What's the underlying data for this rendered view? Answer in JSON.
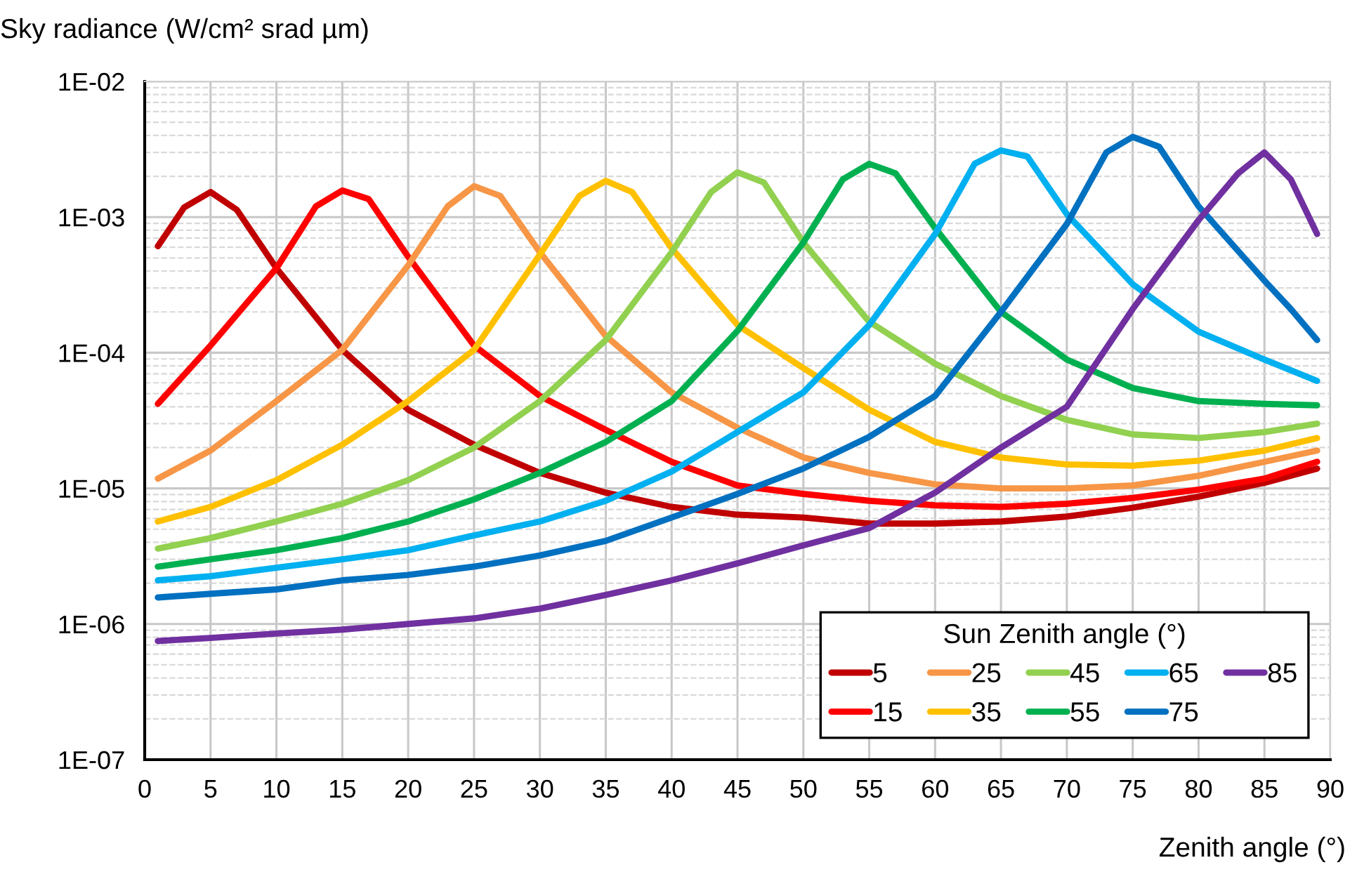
{
  "chart_data": {
    "type": "line",
    "ylabel": "Sky radiance (W/cm² srad µm)",
    "xlabel": "Zenith angle (°)",
    "legend_title": "Sun Zenith angle (°)",
    "legend": "bottom right",
    "grid": true,
    "log": "y",
    "marker": "none",
    "line_style": "solid",
    "xlim": [
      0,
      90
    ],
    "xticks": [
      0,
      5,
      10,
      15,
      20,
      25,
      30,
      35,
      40,
      45,
      50,
      55,
      60,
      65,
      70,
      75,
      80,
      85,
      90
    ],
    "ylim": [
      1e-07,
      0.01
    ],
    "yticks": [
      {
        "value": 1e-07,
        "label": "1E-07"
      },
      {
        "value": 1e-06,
        "label": "1E-06"
      },
      {
        "value": 1e-05,
        "label": "1E-05"
      },
      {
        "value": 0.0001,
        "label": "1E-04"
      },
      {
        "value": 0.001,
        "label": "1E-03"
      },
      {
        "value": 0.01,
        "label": "1E-02"
      }
    ],
    "series": [
      {
        "name": "5",
        "color": "#c00000",
        "x": [
          1,
          3,
          5,
          7,
          10,
          15,
          20,
          25,
          30,
          35,
          40,
          45,
          50,
          55,
          60,
          65,
          70,
          75,
          80,
          85,
          89
        ],
        "values": [
          0.00061,
          0.00118,
          0.00153,
          0.00113,
          0.00042,
          0.000105,
          3.8e-05,
          2.1e-05,
          1.3e-05,
          9.3e-06,
          7.3e-06,
          6.4e-06,
          6.1e-06,
          5.5e-06,
          5.5e-06,
          5.7e-06,
          6.2e-06,
          7.2e-06,
          8.7e-06,
          1.1e-05,
          1.4e-05
        ]
      },
      {
        "name": "15",
        "color": "#ff0000",
        "x": [
          1,
          5,
          10,
          13,
          15,
          17,
          20,
          25,
          30,
          35,
          40,
          45,
          50,
          55,
          60,
          65,
          70,
          75,
          80,
          85,
          89
        ],
        "values": [
          4.2e-05,
          0.000113,
          0.00042,
          0.0012,
          0.00157,
          0.00136,
          0.00051,
          0.000113,
          4.8e-05,
          2.7e-05,
          1.57e-05,
          1.05e-05,
          9.1e-06,
          8.1e-06,
          7.5e-06,
          7.3e-06,
          7.7e-06,
          8.5e-06,
          9.8e-06,
          1.18e-05,
          1.57e-05
        ]
      },
      {
        "name": "25",
        "color": "#f79646",
        "x": [
          1,
          5,
          10,
          15,
          20,
          23,
          25,
          27,
          30,
          35,
          40,
          45,
          50,
          55,
          60,
          65,
          70,
          75,
          80,
          85,
          89
        ],
        "values": [
          1.18e-05,
          1.9e-05,
          4.4e-05,
          0.000105,
          0.00044,
          0.0012,
          0.00169,
          0.00143,
          0.00055,
          0.000133,
          5.1e-05,
          2.8e-05,
          1.69e-05,
          1.3e-05,
          1.07e-05,
          1e-05,
          1e-05,
          1.05e-05,
          1.24e-05,
          1.57e-05,
          1.9e-05
        ]
      },
      {
        "name": "35",
        "color": "#ffc000",
        "x": [
          1,
          5,
          10,
          15,
          20,
          25,
          30,
          33,
          35,
          37,
          40,
          45,
          50,
          55,
          60,
          65,
          70,
          75,
          80,
          85,
          89
        ],
        "values": [
          5.7e-06,
          7.3e-06,
          1.15e-05,
          2.1e-05,
          4.4e-05,
          0.000105,
          0.00053,
          0.00143,
          0.00185,
          0.00153,
          0.00059,
          0.00016,
          7.7e-05,
          3.8e-05,
          2.2e-05,
          1.69e-05,
          1.5e-05,
          1.47e-05,
          1.6e-05,
          1.9e-05,
          2.35e-05
        ]
      },
      {
        "name": "45",
        "color": "#92d050",
        "x": [
          1,
          5,
          10,
          15,
          20,
          25,
          30,
          35,
          40,
          43,
          45,
          47,
          50,
          55,
          60,
          65,
          70,
          75,
          80,
          85,
          89
        ],
        "values": [
          3.6e-06,
          4.3e-06,
          5.7e-06,
          7.7e-06,
          1.15e-05,
          2e-05,
          4.4e-05,
          0.000124,
          0.00055,
          0.00153,
          0.00214,
          0.0018,
          0.00065,
          0.000169,
          8.3e-05,
          4.8e-05,
          3.2e-05,
          2.5e-05,
          2.35e-05,
          2.6e-05,
          3e-05
        ]
      },
      {
        "name": "55",
        "color": "#00b050",
        "x": [
          1,
          5,
          10,
          15,
          20,
          25,
          30,
          35,
          40,
          45,
          50,
          53,
          55,
          57,
          60,
          65,
          70,
          75,
          80,
          85,
          89
        ],
        "values": [
          2.65e-06,
          3e-06,
          3.5e-06,
          4.3e-06,
          5.7e-06,
          8.3e-06,
          1.3e-05,
          2.2e-05,
          4.4e-05,
          0.000145,
          0.00065,
          0.0019,
          0.00247,
          0.0021,
          0.00083,
          0.0002,
          8.9e-05,
          5.5e-05,
          4.4e-05,
          4.2e-05,
          4.1e-05
        ]
      },
      {
        "name": "65",
        "color": "#00b0f0",
        "x": [
          1,
          5,
          10,
          15,
          20,
          25,
          30,
          35,
          40,
          45,
          50,
          55,
          60,
          63,
          65,
          67,
          70,
          75,
          80,
          85,
          89
        ],
        "values": [
          2.1e-06,
          2.25e-06,
          2.6e-06,
          3e-06,
          3.5e-06,
          4.5e-06,
          5.7e-06,
          8.1e-06,
          1.33e-05,
          2.6e-05,
          5.1e-05,
          0.00016,
          0.00075,
          0.00247,
          0.0031,
          0.0028,
          0.00105,
          0.00032,
          0.000143,
          8.9e-05,
          6.2e-05
        ]
      },
      {
        "name": "75",
        "color": "#0070c0",
        "x": [
          1,
          5,
          10,
          15,
          20,
          25,
          30,
          35,
          40,
          45,
          50,
          55,
          60,
          65,
          70,
          73,
          75,
          77,
          80,
          85,
          87,
          89
        ],
        "values": [
          1.57e-06,
          1.67e-06,
          1.8e-06,
          2.1e-06,
          2.3e-06,
          2.65e-06,
          3.2e-06,
          4.1e-06,
          6.1e-06,
          9.1e-06,
          1.4e-05,
          2.4e-05,
          4.8e-05,
          0.0002,
          0.00089,
          0.003,
          0.0039,
          0.0033,
          0.0012,
          0.00034,
          0.00021,
          0.000124
        ]
      },
      {
        "name": "85",
        "color": "#7030a0",
        "x": [
          1,
          5,
          10,
          15,
          20,
          25,
          30,
          35,
          40,
          45,
          50,
          55,
          60,
          65,
          70,
          75,
          80,
          83,
          85,
          87,
          89
        ],
        "values": [
          7.5e-07,
          7.9e-07,
          8.5e-07,
          9.1e-07,
          1e-06,
          1.1e-06,
          1.3e-06,
          1.64e-06,
          2.1e-06,
          2.8e-06,
          3.8e-06,
          5.1e-06,
          9.3e-06,
          2e-05,
          4e-05,
          0.00021,
          0.00095,
          0.0021,
          0.003,
          0.0019,
          0.00075
        ]
      }
    ]
  }
}
